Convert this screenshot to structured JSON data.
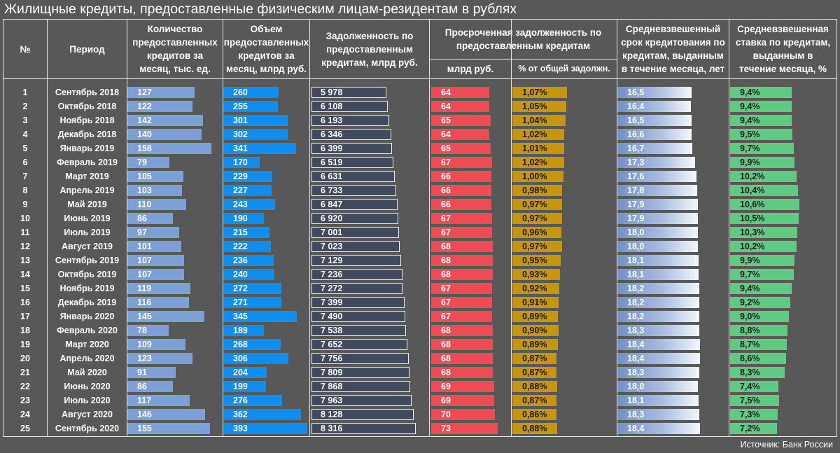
{
  "chart_data": {
    "type": "table",
    "title": "Жилищные кредиты, предоставленные физическим лицам-резидентам в рублях",
    "source": "Источник: Банк России",
    "headers": {
      "num": "№",
      "period": "Период",
      "count": "Количество предоставленных кредитов за месяц, тыс. ед.",
      "volume": "Объем предоставленных кредитов за месяц, млрд руб.",
      "debt": "Задолженность по предоставленным кредитам, млрд руб.",
      "overdue_group": "Просроченная задолженность по предоставленным кредитам",
      "overdue": "млрд руб.",
      "overdue_pct": "% от общей задолжн.",
      "term": "Средневзвешенный срок кредитования по кредитам, выданным в течение месяца, лет",
      "rate": "Средневзвешенная ставка по кредитам, выданным в течение месяца, %"
    },
    "colors": {
      "count": "#7d9fd7",
      "volume": "#0f8ef0",
      "debt": "#414a5c",
      "overdue": "#f04a55",
      "overdue_pct": "#c8960c",
      "term": "#7290c8",
      "rate": "#5fca84"
    },
    "rows": [
      {
        "n": "1",
        "period": "Сентябрь 2018",
        "count": 127,
        "volume": 260,
        "debt": 5978,
        "overdue": 64,
        "pct": 1.07,
        "term": 16.5,
        "rate": 9.4
      },
      {
        "n": "2",
        "period": "Октябрь 2018",
        "count": 122,
        "volume": 255,
        "debt": 6108,
        "overdue": 64,
        "pct": 1.05,
        "term": 16.4,
        "rate": 9.4
      },
      {
        "n": "3",
        "period": "Ноябрь 2018",
        "count": 142,
        "volume": 301,
        "debt": 6193,
        "overdue": 65,
        "pct": 1.04,
        "term": 16.5,
        "rate": 9.4
      },
      {
        "n": "4",
        "period": "Декабрь 2018",
        "count": 140,
        "volume": 302,
        "debt": 6346,
        "overdue": 64,
        "pct": 1.02,
        "term": 16.6,
        "rate": 9.5
      },
      {
        "n": "5",
        "period": "Январь 2019",
        "count": 158,
        "volume": 341,
        "debt": 6399,
        "overdue": 65,
        "pct": 1.01,
        "term": 16.7,
        "rate": 9.7
      },
      {
        "n": "6",
        "period": "Февраль 2019",
        "count": 79,
        "volume": 170,
        "debt": 6519,
        "overdue": 67,
        "pct": 1.02,
        "term": 17.3,
        "rate": 9.9
      },
      {
        "n": "7",
        "period": "Март 2019",
        "count": 105,
        "volume": 229,
        "debt": 6631,
        "overdue": 66,
        "pct": 1.0,
        "term": 17.6,
        "rate": 10.2
      },
      {
        "n": "8",
        "period": "Апрель 2019",
        "count": 103,
        "volume": 227,
        "debt": 6733,
        "overdue": 66,
        "pct": 0.98,
        "term": 17.8,
        "rate": 10.4
      },
      {
        "n": "9",
        "period": "Май 2019",
        "count": 110,
        "volume": 243,
        "debt": 6847,
        "overdue": 66,
        "pct": 0.97,
        "term": 17.9,
        "rate": 10.6
      },
      {
        "n": "10",
        "period": "Июнь 2019",
        "count": 86,
        "volume": 190,
        "debt": 6920,
        "overdue": 67,
        "pct": 0.97,
        "term": 17.9,
        "rate": 10.5
      },
      {
        "n": "11",
        "period": "Июль 2019",
        "count": 97,
        "volume": 215,
        "debt": 7001,
        "overdue": 67,
        "pct": 0.96,
        "term": 18.0,
        "rate": 10.3
      },
      {
        "n": "12",
        "period": "Август 2019",
        "count": 101,
        "volume": 222,
        "debt": 7023,
        "overdue": 68,
        "pct": 0.97,
        "term": 18.0,
        "rate": 10.2
      },
      {
        "n": "13",
        "period": "Сентябрь 2019",
        "count": 107,
        "volume": 236,
        "debt": 7129,
        "overdue": 68,
        "pct": 0.95,
        "term": 18.1,
        "rate": 9.9
      },
      {
        "n": "14",
        "period": "Октябрь 2019",
        "count": 107,
        "volume": 240,
        "debt": 7236,
        "overdue": 68,
        "pct": 0.93,
        "term": 18.1,
        "rate": 9.7
      },
      {
        "n": "15",
        "period": "Ноябрь 2019",
        "count": 119,
        "volume": 272,
        "debt": 7272,
        "overdue": 67,
        "pct": 0.92,
        "term": 18.2,
        "rate": 9.4
      },
      {
        "n": "16",
        "period": "Декабрь 2019",
        "count": 116,
        "volume": 271,
        "debt": 7399,
        "overdue": 67,
        "pct": 0.91,
        "term": 18.2,
        "rate": 9.2
      },
      {
        "n": "17",
        "period": "Январь 2020",
        "count": 145,
        "volume": 345,
        "debt": 7490,
        "overdue": 67,
        "pct": 0.89,
        "term": 18.2,
        "rate": 9.0
      },
      {
        "n": "18",
        "period": "Февраль 2020",
        "count": 78,
        "volume": 189,
        "debt": 7538,
        "overdue": 68,
        "pct": 0.9,
        "term": 18.3,
        "rate": 8.8
      },
      {
        "n": "19",
        "period": "Март 2020",
        "count": 109,
        "volume": 268,
        "debt": 7652,
        "overdue": 68,
        "pct": 0.89,
        "term": 18.4,
        "rate": 8.7
      },
      {
        "n": "20",
        "period": "Апрель 2020",
        "count": 123,
        "volume": 306,
        "debt": 7756,
        "overdue": 68,
        "pct": 0.87,
        "term": 18.4,
        "rate": 8.6
      },
      {
        "n": "21",
        "period": "Май 2020",
        "count": 91,
        "volume": 204,
        "debt": 7809,
        "overdue": 68,
        "pct": 0.87,
        "term": 18.3,
        "rate": 8.3
      },
      {
        "n": "22",
        "period": "Июнь 2020",
        "count": 86,
        "volume": 199,
        "debt": 7868,
        "overdue": 69,
        "pct": 0.88,
        "term": 18.0,
        "rate": 7.4
      },
      {
        "n": "23",
        "period": "Июль 2020",
        "count": 117,
        "volume": 276,
        "debt": 7963,
        "overdue": 69,
        "pct": 0.87,
        "term": 18.1,
        "rate": 7.5
      },
      {
        "n": "24",
        "period": "Август 2020",
        "count": 146,
        "volume": 362,
        "debt": 8128,
        "overdue": 70,
        "pct": 0.86,
        "term": 18.3,
        "rate": 7.3
      },
      {
        "n": "25",
        "period": "Сентябрь 2020",
        "count": 155,
        "volume": 393,
        "debt": 8316,
        "overdue": 73,
        "pct": 0.88,
        "term": 18.4,
        "rate": 7.2
      }
    ]
  }
}
